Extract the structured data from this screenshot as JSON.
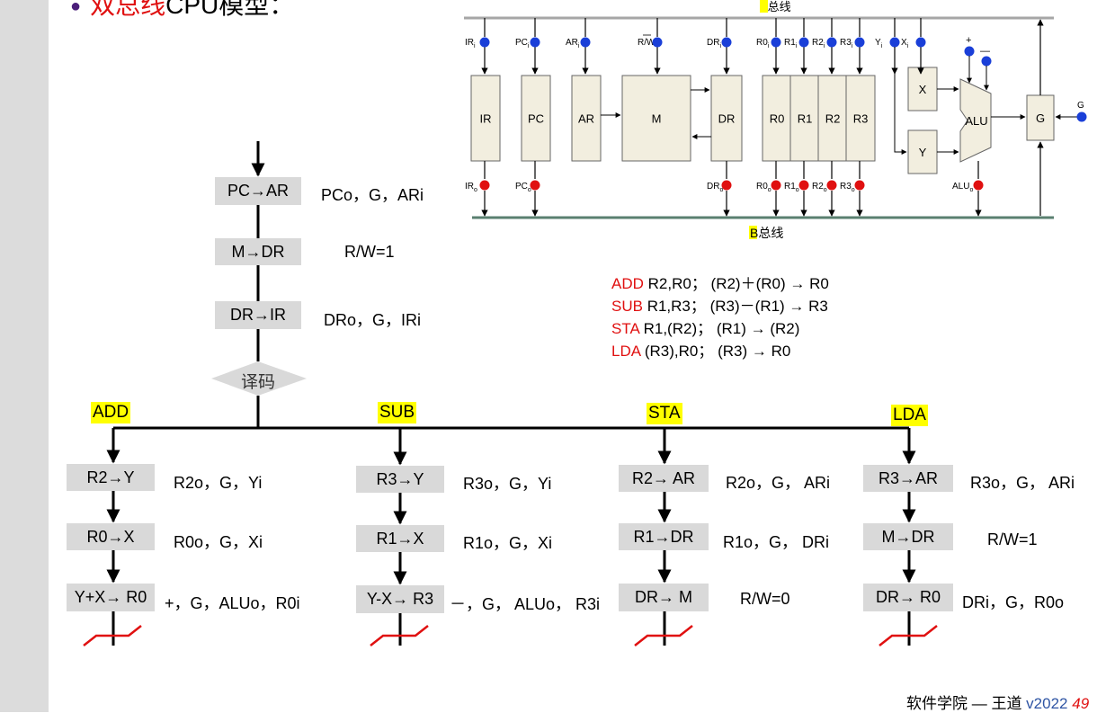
{
  "title": {
    "prefix": "双总线",
    "rest": "CPU模型："
  },
  "cpu_diagram": {
    "bus_a_prefix": "A",
    "bus_a_suffix": "总线",
    "bus_b_prefix": "B",
    "bus_b_suffix": "总线",
    "registers": [
      "IR",
      "PC",
      "AR",
      "M",
      "DR",
      "R0",
      "R1",
      "R2",
      "R3",
      "X",
      "Y",
      "ALU",
      "G"
    ],
    "in_signals": [
      "IR",
      "PC",
      "AR",
      "R/W",
      "DR",
      "R0",
      "R1",
      "R2",
      "R3",
      "Y",
      "X"
    ],
    "in_signals_sub": "i",
    "out_signals": [
      "IR",
      "PC",
      "DR",
      "R0",
      "R1",
      "R2",
      "R3",
      "ALU"
    ],
    "out_signals_sub": "o",
    "alu_plus": "+",
    "alu_minus": "—",
    "g_label": "G",
    "colors": {
      "in_dot": "#1a3fd8",
      "out_dot": "#e01010",
      "bus_a": "#a6a6a6",
      "bus_b": "#5a8070",
      "box": "#f2eedf"
    }
  },
  "fetch": {
    "steps": [
      {
        "box": "PC→AR",
        "signals": "PCo，G，ARi"
      },
      {
        "box": "M→DR",
        "signals": "R/W=1"
      },
      {
        "box": "DR→IR",
        "signals": "DRo，G，IRi"
      }
    ],
    "decode": "译码"
  },
  "instructions": [
    {
      "op": "ADD",
      "text": " R2,R0；  (R2)＋(R0) → R0"
    },
    {
      "op": "SUB",
      "text": " R1,R3；  (R3)－(R1) → R3"
    },
    {
      "op": "STA",
      "text": " R1,(R2)；  (R1) → (R2)"
    },
    {
      "op": "LDA",
      "text": " (R3),R0；  (R3) → R0"
    }
  ],
  "branches": [
    {
      "label": "ADD",
      "steps": [
        {
          "box": "R2→Y",
          "signals": "R2o，G，Yi"
        },
        {
          "box": "R0→X",
          "signals": "R0o，G，Xi"
        },
        {
          "box": "Y+X→ R0",
          "signals": "+，G，ALUo，R0i"
        }
      ]
    },
    {
      "label": "SUB",
      "steps": [
        {
          "box": "R3→Y",
          "signals": "R3o，G，Yi"
        },
        {
          "box": "R1→X",
          "signals": "R1o，G，Xi"
        },
        {
          "box": "Y-X→ R3",
          "signals": "－，G， ALUo， R3i"
        }
      ]
    },
    {
      "label": "STA",
      "steps": [
        {
          "box": "R2→ AR",
          "signals": "R2o，G， ARi"
        },
        {
          "box": "R1→DR",
          "signals": "R1o，G， DRi"
        },
        {
          "box": "DR→ M",
          "signals": "R/W=0"
        }
      ]
    },
    {
      "label": "LDA",
      "steps": [
        {
          "box": "R3→AR",
          "signals": "R3o，G， ARi"
        },
        {
          "box": "M→DR",
          "signals": "R/W=1"
        },
        {
          "box": "DR→ R0",
          "signals": "DRi，G，R0o"
        }
      ]
    }
  ],
  "footer": {
    "school": "软件学院 — 王道 ",
    "version": "v2022",
    "page": "49"
  }
}
